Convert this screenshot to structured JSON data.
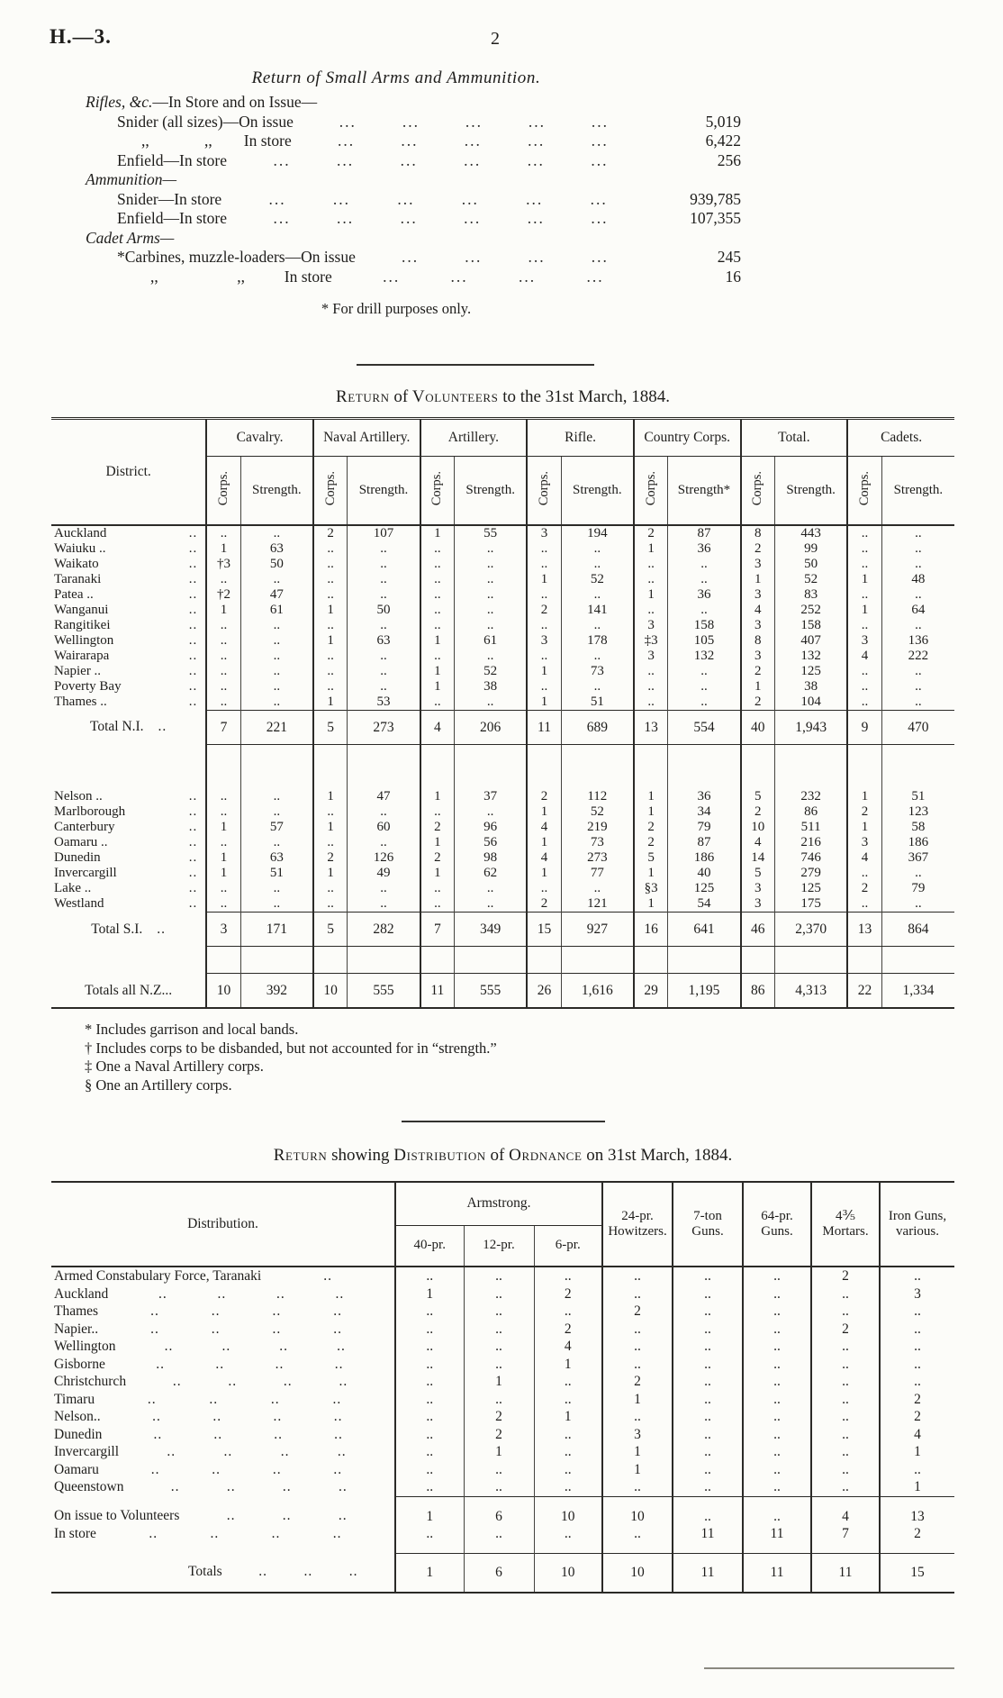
{
  "page": {
    "doc_ref": "H.—3.",
    "page_number": "2"
  },
  "arms_return": {
    "title": "Return of Small Arms and Ammunition.",
    "dot_glyph": "...",
    "rows": [
      {
        "type": "section",
        "italic": "Rifles, &c.",
        "rest": "—In Store and on Issue—"
      },
      {
        "type": "item",
        "label": "Snider (all sizes)—On issue",
        "dots": 5,
        "value": "5,019"
      },
      {
        "type": "item",
        "label": ",,              ,,        In store",
        "dots": 5,
        "value": "6,422",
        "pad": 100
      },
      {
        "type": "item",
        "label": "Enfield—In store",
        "dots": 6,
        "value": "256"
      },
      {
        "type": "section",
        "italic": "Ammunition—",
        "rest": ""
      },
      {
        "type": "item",
        "label": "Snider—In store",
        "dots": 6,
        "value": "939,785"
      },
      {
        "type": "item",
        "label": "Enfield—In store",
        "dots": 6,
        "value": "107,355"
      },
      {
        "type": "section",
        "italic": "Cadet Arms—",
        "rest": ""
      },
      {
        "type": "item",
        "label": "*Carbines, muzzle-loaders—On issue",
        "dots": 4,
        "value": "245"
      },
      {
        "type": "item",
        "label": ",,                    ,,          In store",
        "dots": 4,
        "value": "16",
        "pad": 110
      }
    ],
    "footnote": "* For drill purposes only."
  },
  "volunteers": {
    "title_parts": [
      {
        "t": "Return",
        "sc": true
      },
      {
        "t": " of "
      },
      {
        "t": "Volunteers",
        "sc": true
      },
      {
        "t": " to the 31st March, 1884."
      }
    ],
    "district_header": "District.",
    "groups": [
      {
        "label": "Cavalry.",
        "corps": "Corps.",
        "strength": "Strength."
      },
      {
        "label": "Naval Artillery.",
        "corps": "Corps.",
        "strength": "Strength."
      },
      {
        "label": "Artillery.",
        "corps": "Corps.",
        "strength": "Strength."
      },
      {
        "label": "Rifle.",
        "corps": "Corps.",
        "strength": "Strength."
      },
      {
        "label": "Country Corps.",
        "corps": "Corps.",
        "strength": "Strength*"
      },
      {
        "label": "Total.",
        "corps": "Corps.",
        "strength": "Strength."
      },
      {
        "label": "Cadets.",
        "corps": "Corps.",
        "strength": "Strength."
      }
    ],
    "rows": [
      {
        "type": "data",
        "district": "Auckland",
        "leader": "..",
        "cells": [
          "..",
          "..",
          "2",
          "107",
          "1",
          "55",
          "3",
          "194",
          "2",
          "87",
          "8",
          "443",
          "..",
          ".."
        ]
      },
      {
        "type": "data",
        "district": "Waiuku ..",
        "leader": "..",
        "cells": [
          "1",
          "63",
          "..",
          "..",
          "..",
          "..",
          "..",
          "..",
          "1",
          "36",
          "2",
          "99",
          "..",
          ".."
        ]
      },
      {
        "type": "data",
        "district": "Waikato",
        "leader": "..",
        "cells": [
          "†3",
          "50",
          "..",
          "..",
          "..",
          "..",
          "..",
          "..",
          "..",
          "..",
          "3",
          "50",
          "..",
          ".."
        ]
      },
      {
        "type": "data",
        "district": "Taranaki",
        "leader": "..",
        "cells": [
          "..",
          "..",
          "..",
          "..",
          "..",
          "..",
          "1",
          "52",
          "..",
          "..",
          "1",
          "52",
          "1",
          "48"
        ]
      },
      {
        "type": "data",
        "district": "Patea ..",
        "leader": "..",
        "cells": [
          "†2",
          "47",
          "..",
          "..",
          "..",
          "..",
          "..",
          "..",
          "1",
          "36",
          "3",
          "83",
          "..",
          ".."
        ]
      },
      {
        "type": "data",
        "district": "Wanganui",
        "leader": "..",
        "cells": [
          "1",
          "61",
          "1",
          "50",
          "..",
          "..",
          "2",
          "141",
          "..",
          "..",
          "4",
          "252",
          "1",
          "64"
        ]
      },
      {
        "type": "data",
        "district": "Rangitikei",
        "leader": "..",
        "cells": [
          "..",
          "..",
          "..",
          "..",
          "..",
          "..",
          "..",
          "..",
          "3",
          "158",
          "3",
          "158",
          "..",
          ".."
        ]
      },
      {
        "type": "data",
        "district": "Wellington",
        "leader": "..",
        "cells": [
          "..",
          "..",
          "1",
          "63",
          "1",
          "61",
          "3",
          "178",
          "‡3",
          "105",
          "8",
          "407",
          "3",
          "136"
        ]
      },
      {
        "type": "data",
        "district": "Wairarapa",
        "leader": "..",
        "cells": [
          "..",
          "..",
          "..",
          "..",
          "..",
          "..",
          "..",
          "..",
          "3",
          "132",
          "3",
          "132",
          "4",
          "222"
        ]
      },
      {
        "type": "data",
        "district": "Napier ..",
        "leader": "..",
        "cells": [
          "..",
          "..",
          "..",
          "..",
          "1",
          "52",
          "1",
          "73",
          "..",
          "..",
          "2",
          "125",
          "..",
          ".."
        ]
      },
      {
        "type": "data",
        "district": "Poverty Bay",
        "leader": "..",
        "cells": [
          "..",
          "..",
          "..",
          "..",
          "1",
          "38",
          "..",
          "..",
          "..",
          "..",
          "1",
          "38",
          "..",
          ".."
        ]
      },
      {
        "type": "data",
        "district": "Thames ..",
        "leader": "..",
        "cells": [
          "..",
          "..",
          "1",
          "53",
          "..",
          "..",
          "1",
          "51",
          "..",
          "..",
          "2",
          "104",
          "..",
          ".."
        ]
      },
      {
        "type": "total",
        "district": "Total N.I.",
        "leader": "..",
        "cells": [
          "7",
          "221",
          "5",
          "273",
          "4",
          "206",
          "11",
          "689",
          "13",
          "554",
          "40",
          "1,943",
          "9",
          "470"
        ]
      },
      {
        "type": "spacer"
      },
      {
        "type": "data",
        "district": "Nelson ..",
        "leader": "..",
        "cells": [
          "..",
          "..",
          "1",
          "47",
          "1",
          "37",
          "2",
          "112",
          "1",
          "36",
          "5",
          "232",
          "1",
          "51"
        ]
      },
      {
        "type": "data",
        "district": "Marlborough",
        "leader": "..",
        "cells": [
          "..",
          "..",
          "..",
          "..",
          "..",
          "..",
          "1",
          "52",
          "1",
          "34",
          "2",
          "86",
          "2",
          "123"
        ]
      },
      {
        "type": "data",
        "district": "Canterbury",
        "leader": "..",
        "cells": [
          "1",
          "57",
          "1",
          "60",
          "2",
          "96",
          "4",
          "219",
          "2",
          "79",
          "10",
          "511",
          "1",
          "58"
        ]
      },
      {
        "type": "data",
        "district": "Oamaru ..",
        "leader": "..",
        "cells": [
          "..",
          "..",
          "..",
          "..",
          "1",
          "56",
          "1",
          "73",
          "2",
          "87",
          "4",
          "216",
          "3",
          "186"
        ]
      },
      {
        "type": "data",
        "district": "Dunedin",
        "leader": "..",
        "cells": [
          "1",
          "63",
          "2",
          "126",
          "2",
          "98",
          "4",
          "273",
          "5",
          "186",
          "14",
          "746",
          "4",
          "367"
        ]
      },
      {
        "type": "data",
        "district": "Invercargill",
        "leader": "..",
        "cells": [
          "1",
          "51",
          "1",
          "49",
          "1",
          "62",
          "1",
          "77",
          "1",
          "40",
          "5",
          "279",
          "..",
          ".."
        ]
      },
      {
        "type": "data",
        "district": "Lake ..",
        "leader": "..",
        "cells": [
          "..",
          "..",
          "..",
          "..",
          "..",
          "..",
          "..",
          "..",
          "§3",
          "125",
          "3",
          "125",
          "2",
          "79"
        ]
      },
      {
        "type": "data",
        "district": "Westland",
        "leader": "..",
        "cells": [
          "..",
          "..",
          "..",
          "..",
          "..",
          "..",
          "2",
          "121",
          "1",
          "54",
          "3",
          "175",
          "..",
          ".."
        ]
      },
      {
        "type": "total",
        "district": "Total S.I.",
        "leader": "..",
        "cells": [
          "3",
          "171",
          "5",
          "282",
          "7",
          "349",
          "15",
          "927",
          "16",
          "641",
          "46",
          "2,370",
          "13",
          "864"
        ]
      },
      {
        "type": "spacer2"
      },
      {
        "type": "total",
        "district": "Totals all N.Z...",
        "leader": "",
        "cells": [
          "10",
          "392",
          "10",
          "555",
          "11",
          "555",
          "26",
          "1,616",
          "29",
          "1,195",
          "86",
          "4,313",
          "22",
          "1,334"
        ]
      }
    ],
    "footnotes": [
      "* Includes garrison and local bands.",
      "† Includes corps to be disbanded, but not accounted for in “strength.”",
      "‡ One a Naval Artillery corps.",
      "§ One an Artillery corps."
    ]
  },
  "ordnance": {
    "title_parts": [
      {
        "t": "Return",
        "sc": true
      },
      {
        "t": " showing "
      },
      {
        "t": "Distribution",
        "sc": true
      },
      {
        "t": " of "
      },
      {
        "t": "Ordnance",
        "sc": true
      },
      {
        "t": " on 31st March, 1884."
      }
    ],
    "distribution_header": "Distribution.",
    "dot_glyph": "..",
    "armstrong": {
      "label": "Armstrong.",
      "cols": [
        "40-pr.",
        "12-pr.",
        "6-pr."
      ]
    },
    "columns": [
      "24-pr. Howitzers.",
      "7-ton Guns.",
      "64-pr. Guns.",
      "4⅗ Mortars.",
      "Iron Guns, various."
    ],
    "rows": [
      {
        "type": "data",
        "label": "Armed Constabulary Force, Taranaki",
        "dots": 1,
        "cells": [
          "..",
          "..",
          "..",
          "..",
          "..",
          "..",
          "2",
          ".."
        ]
      },
      {
        "type": "data",
        "label": "Auckland",
        "dots": 4,
        "cells": [
          "1",
          "..",
          "2",
          "..",
          "..",
          "..",
          "..",
          "3"
        ]
      },
      {
        "type": "data",
        "label": "Thames",
        "dots": 4,
        "cells": [
          "..",
          "..",
          "..",
          "2",
          "..",
          "..",
          "..",
          ".."
        ]
      },
      {
        "type": "data",
        "label": "Napier..",
        "dots": 4,
        "cells": [
          "..",
          "..",
          "2",
          "..",
          "..",
          "..",
          "2",
          ".."
        ]
      },
      {
        "type": "data",
        "label": "Wellington",
        "dots": 4,
        "cells": [
          "..",
          "..",
          "4",
          "..",
          "..",
          "..",
          "..",
          ".."
        ]
      },
      {
        "type": "data",
        "label": "Gisborne",
        "dots": 4,
        "cells": [
          "..",
          "..",
          "1",
          "..",
          "..",
          "..",
          "..",
          ".."
        ]
      },
      {
        "type": "data",
        "label": "Christchurch",
        "dots": 4,
        "cells": [
          "..",
          "1",
          "..",
          "2",
          "..",
          "..",
          "..",
          ".."
        ]
      },
      {
        "type": "data",
        "label": "Timaru",
        "dots": 4,
        "cells": [
          "..",
          "..",
          "..",
          "1",
          "..",
          "..",
          "..",
          "2"
        ]
      },
      {
        "type": "data",
        "label": "Nelson..",
        "dots": 4,
        "cells": [
          "..",
          "2",
          "1",
          "..",
          "..",
          "..",
          "..",
          "2"
        ]
      },
      {
        "type": "data",
        "label": "Dunedin",
        "dots": 4,
        "cells": [
          "..",
          "2",
          "..",
          "3",
          "..",
          "..",
          "..",
          "4"
        ]
      },
      {
        "type": "data",
        "label": "Invercargill",
        "dots": 4,
        "cells": [
          "..",
          "1",
          "..",
          "1",
          "..",
          "..",
          "..",
          "1"
        ]
      },
      {
        "type": "data",
        "label": "Oamaru",
        "dots": 4,
        "cells": [
          "..",
          "..",
          "..",
          "1",
          "..",
          "..",
          "..",
          ".."
        ]
      },
      {
        "type": "data",
        "label": "Queenstown",
        "dots": 4,
        "cells": [
          "..",
          "..",
          "..",
          "..",
          "..",
          "..",
          "..",
          "1"
        ]
      },
      {
        "type": "issue",
        "label": "On issue to Volunteers",
        "dots": 3,
        "cells": [
          "1",
          "6",
          "10",
          "10",
          "..",
          "..",
          "4",
          "13"
        ]
      },
      {
        "type": "store",
        "label": "In store",
        "dots": 4,
        "cells": [
          "..",
          "..",
          "..",
          "..",
          "11",
          "11",
          "7",
          "2"
        ]
      },
      {
        "type": "totals",
        "label": "Totals",
        "dots": 3,
        "cells": [
          "1",
          "6",
          "10",
          "10",
          "11",
          "11",
          "11",
          "15"
        ]
      }
    ]
  }
}
